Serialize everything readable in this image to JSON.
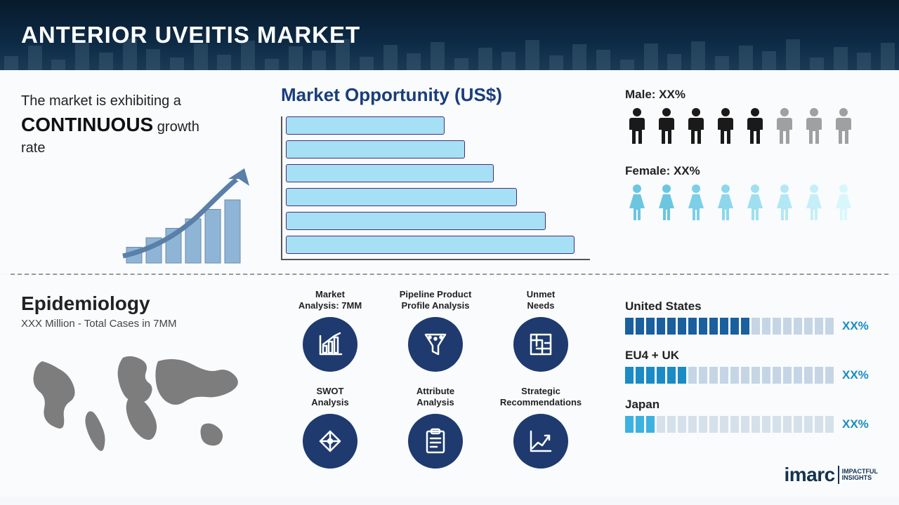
{
  "header": {
    "title": "ANTERIOR UVEITIS MARKET",
    "bg_gradient": [
      "#071a2b",
      "#0d2a45",
      "#1a3a55"
    ],
    "title_color": "#ffffff",
    "title_fontsize": 33
  },
  "growth": {
    "line1": "The market is exhibiting a",
    "keyword": "CONTINUOUS",
    "line2_suffix": "growth",
    "line3": "rate",
    "bar_color": "#8fb5d6",
    "arrow_color": "#5a7fa8",
    "bars": [
      25,
      40,
      55,
      70,
      85,
      100
    ]
  },
  "opportunity": {
    "title": "Market Opportunity (US$)",
    "title_color": "#1a3d7c",
    "bar_fill": "#a5e0f5",
    "bar_border": "#4a2d7a",
    "values_pct": [
      55,
      62,
      72,
      80,
      90,
      100
    ]
  },
  "demographics": {
    "male_label": "Male: XX%",
    "female_label": "Female: XX%",
    "male_colors": [
      "#1a1a1a",
      "#1a1a1a",
      "#1a1a1a",
      "#1a1a1a",
      "#1a1a1a",
      "#a0a0a0",
      "#a0a0a0",
      "#a0a0a0"
    ],
    "female_colors": [
      "#6cc6e0",
      "#6cc6e0",
      "#7ccfe6",
      "#8ed7ea",
      "#a0dfef",
      "#b3e7f3",
      "#c5eff8",
      "#d8f7fc"
    ]
  },
  "epidemiology": {
    "title": "Epidemiology",
    "subtitle": "XXX Million - Total Cases in 7MM",
    "map_color": "#7d7d7d"
  },
  "analysis": {
    "circle_bg": "#1e3a6e",
    "items": [
      {
        "label": "Market\nAnalysis: 7MM",
        "icon": "chart-icon"
      },
      {
        "label": "Pipeline Product\nProfile Analysis",
        "icon": "funnel-icon"
      },
      {
        "label": "Unmet\nNeeds",
        "icon": "maze-icon"
      },
      {
        "label": "SWOT\nAnalysis",
        "icon": "swot-icon"
      },
      {
        "label": "Attribute\nAnalysis",
        "icon": "clipboard-icon"
      },
      {
        "label": "Strategic\nRecommendations",
        "icon": "growth-icon"
      }
    ]
  },
  "regions": {
    "pct_color": "#1a8bc4",
    "items": [
      {
        "name": "United States",
        "pct": "XX%",
        "filled": 12,
        "total": 20,
        "fill_color": "#1a5f9e",
        "empty_color": "#c5d5e5"
      },
      {
        "name": "EU4 + UK",
        "pct": "XX%",
        "filled": 6,
        "total": 20,
        "fill_color": "#1a8bc4",
        "empty_color": "#c5d5e5"
      },
      {
        "name": "Japan",
        "pct": "XX%",
        "filled": 3,
        "total": 20,
        "fill_color": "#3db2e0",
        "empty_color": "#d5e0ea"
      }
    ]
  },
  "logo": {
    "main": "imarc",
    "tag1": "IMPACTFUL",
    "tag2": "INSIGHTS",
    "color": "#14324f"
  }
}
